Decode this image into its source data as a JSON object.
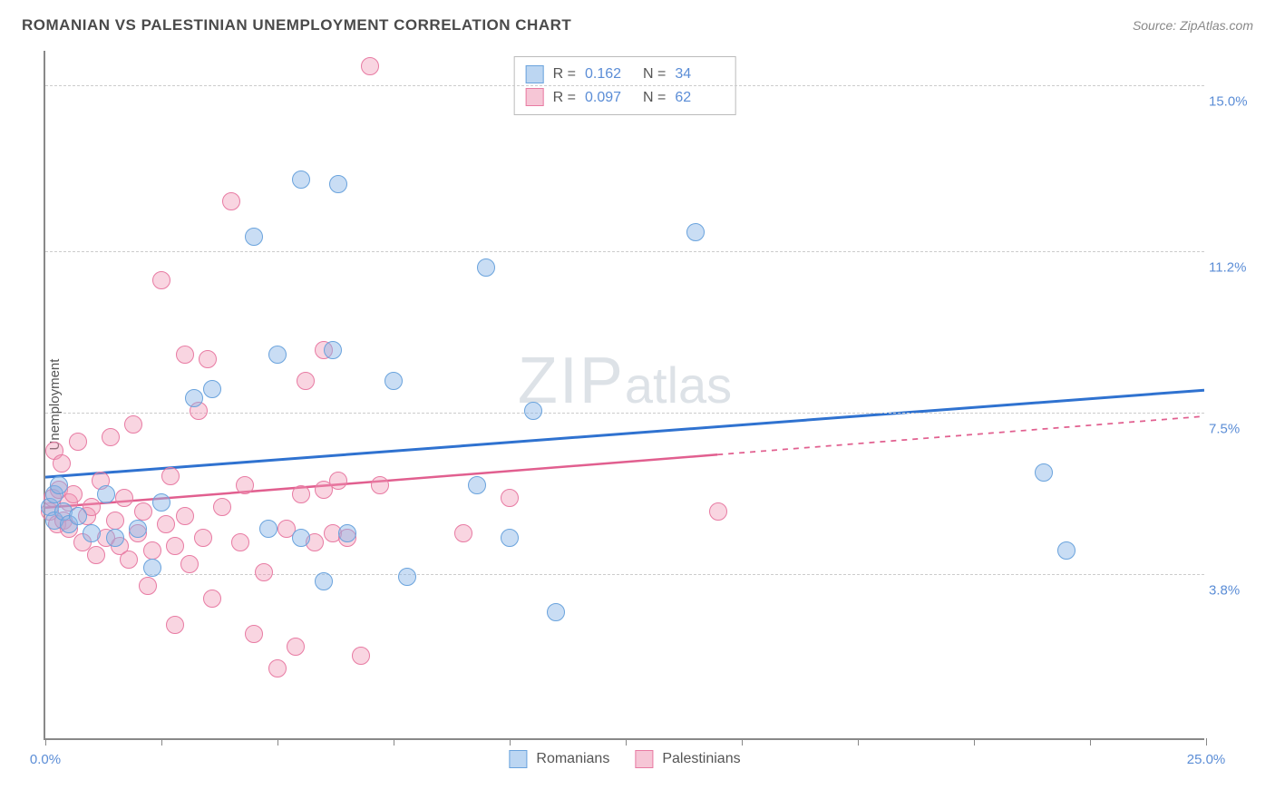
{
  "title": "ROMANIAN VS PALESTINIAN UNEMPLOYMENT CORRELATION CHART",
  "source": "Source: ZipAtlas.com",
  "ylabel": "Unemployment",
  "watermark_a": "ZIP",
  "watermark_b": "atlas",
  "chart": {
    "type": "scatter",
    "xlim": [
      0,
      25
    ],
    "ylim": [
      0,
      15.8
    ],
    "x_axis_labels": [
      {
        "x": 0,
        "label": "0.0%"
      },
      {
        "x": 25,
        "label": "25.0%"
      }
    ],
    "x_ticks": [
      0,
      2.5,
      5,
      7.5,
      10,
      12.5,
      15,
      17.5,
      20,
      22.5,
      25
    ],
    "y_gridlines": [
      {
        "y": 3.8,
        "label": "3.8%"
      },
      {
        "y": 7.5,
        "label": "7.5%"
      },
      {
        "y": 11.2,
        "label": "11.2%"
      },
      {
        "y": 15.0,
        "label": "15.0%"
      }
    ],
    "grid_color": "#cccccc",
    "background_color": "#ffffff",
    "marker_radius": 10,
    "marker_stroke_width": 1.5,
    "series": [
      {
        "name": "Romanians",
        "fill": "rgba(135,180,230,0.45)",
        "stroke": "#6aa3dd",
        "swatch_fill": "#bcd6f2",
        "swatch_stroke": "#6aa3dd",
        "r_value": "0.162",
        "n_value": "34",
        "trend": {
          "color": "#2f72d0",
          "width": 3,
          "y_at_x0": 6.0,
          "y_at_x25": 8.0,
          "solid_until_x": 25
        },
        "points": [
          {
            "x": 0.1,
            "y": 5.3
          },
          {
            "x": 0.2,
            "y": 5.6
          },
          {
            "x": 0.2,
            "y": 5.0
          },
          {
            "x": 0.3,
            "y": 5.8
          },
          {
            "x": 0.4,
            "y": 5.2
          },
          {
            "x": 0.5,
            "y": 4.9
          },
          {
            "x": 0.7,
            "y": 5.1
          },
          {
            "x": 1.0,
            "y": 4.7
          },
          {
            "x": 1.3,
            "y": 5.6
          },
          {
            "x": 1.5,
            "y": 4.6
          },
          {
            "x": 2.0,
            "y": 4.8
          },
          {
            "x": 2.3,
            "y": 3.9
          },
          {
            "x": 2.5,
            "y": 5.4
          },
          {
            "x": 3.2,
            "y": 7.8
          },
          {
            "x": 3.6,
            "y": 8.0
          },
          {
            "x": 4.5,
            "y": 11.5
          },
          {
            "x": 4.8,
            "y": 4.8
          },
          {
            "x": 5.0,
            "y": 8.8
          },
          {
            "x": 5.5,
            "y": 4.6
          },
          {
            "x": 5.5,
            "y": 12.8
          },
          {
            "x": 6.0,
            "y": 3.6
          },
          {
            "x": 6.2,
            "y": 8.9
          },
          {
            "x": 6.3,
            "y": 12.7
          },
          {
            "x": 6.5,
            "y": 4.7
          },
          {
            "x": 7.5,
            "y": 8.2
          },
          {
            "x": 7.8,
            "y": 3.7
          },
          {
            "x": 9.3,
            "y": 5.8
          },
          {
            "x": 9.5,
            "y": 10.8
          },
          {
            "x": 10.0,
            "y": 4.6
          },
          {
            "x": 10.5,
            "y": 7.5
          },
          {
            "x": 11.0,
            "y": 2.9
          },
          {
            "x": 14.0,
            "y": 11.6
          },
          {
            "x": 21.5,
            "y": 6.1
          },
          {
            "x": 22.0,
            "y": 4.3
          }
        ]
      },
      {
        "name": "Palestinians",
        "fill": "rgba(240,150,180,0.40)",
        "stroke": "#e87ba3",
        "swatch_fill": "#f6c6d6",
        "swatch_stroke": "#e87ba3",
        "r_value": "0.097",
        "n_value": "62",
        "trend": {
          "color": "#e15f8f",
          "width": 2.5,
          "y_at_x0": 5.3,
          "y_at_x25": 7.4,
          "solid_until_x": 14.5
        },
        "points": [
          {
            "x": 0.1,
            "y": 5.2
          },
          {
            "x": 0.15,
            "y": 5.5
          },
          {
            "x": 0.2,
            "y": 6.6
          },
          {
            "x": 0.25,
            "y": 4.9
          },
          {
            "x": 0.3,
            "y": 5.7
          },
          {
            "x": 0.35,
            "y": 6.3
          },
          {
            "x": 0.4,
            "y": 5.0
          },
          {
            "x": 0.5,
            "y": 4.8
          },
          {
            "x": 0.5,
            "y": 5.4
          },
          {
            "x": 0.6,
            "y": 5.6
          },
          {
            "x": 0.7,
            "y": 6.8
          },
          {
            "x": 0.8,
            "y": 4.5
          },
          {
            "x": 0.9,
            "y": 5.1
          },
          {
            "x": 1.0,
            "y": 5.3
          },
          {
            "x": 1.1,
            "y": 4.2
          },
          {
            "x": 1.2,
            "y": 5.9
          },
          {
            "x": 1.3,
            "y": 4.6
          },
          {
            "x": 1.4,
            "y": 6.9
          },
          {
            "x": 1.5,
            "y": 5.0
          },
          {
            "x": 1.6,
            "y": 4.4
          },
          {
            "x": 1.7,
            "y": 5.5
          },
          {
            "x": 1.8,
            "y": 4.1
          },
          {
            "x": 1.9,
            "y": 7.2
          },
          {
            "x": 2.0,
            "y": 4.7
          },
          {
            "x": 2.1,
            "y": 5.2
          },
          {
            "x": 2.2,
            "y": 3.5
          },
          {
            "x": 2.3,
            "y": 4.3
          },
          {
            "x": 2.5,
            "y": 10.5
          },
          {
            "x": 2.6,
            "y": 4.9
          },
          {
            "x": 2.7,
            "y": 6.0
          },
          {
            "x": 2.8,
            "y": 4.4
          },
          {
            "x": 2.8,
            "y": 2.6
          },
          {
            "x": 3.0,
            "y": 8.8
          },
          {
            "x": 3.0,
            "y": 5.1
          },
          {
            "x": 3.1,
            "y": 4.0
          },
          {
            "x": 3.3,
            "y": 7.5
          },
          {
            "x": 3.4,
            "y": 4.6
          },
          {
            "x": 3.5,
            "y": 8.7
          },
          {
            "x": 3.6,
            "y": 3.2
          },
          {
            "x": 3.8,
            "y": 5.3
          },
          {
            "x": 4.0,
            "y": 12.3
          },
          {
            "x": 4.2,
            "y": 4.5
          },
          {
            "x": 4.3,
            "y": 5.8
          },
          {
            "x": 4.5,
            "y": 2.4
          },
          {
            "x": 4.7,
            "y": 3.8
          },
          {
            "x": 5.0,
            "y": 1.6
          },
          {
            "x": 5.2,
            "y": 4.8
          },
          {
            "x": 5.4,
            "y": 2.1
          },
          {
            "x": 5.5,
            "y": 5.6
          },
          {
            "x": 5.6,
            "y": 8.2
          },
          {
            "x": 5.8,
            "y": 4.5
          },
          {
            "x": 6.0,
            "y": 8.9
          },
          {
            "x": 6.0,
            "y": 5.7
          },
          {
            "x": 6.2,
            "y": 4.7
          },
          {
            "x": 6.3,
            "y": 5.9
          },
          {
            "x": 6.5,
            "y": 4.6
          },
          {
            "x": 6.8,
            "y": 1.9
          },
          {
            "x": 7.0,
            "y": 15.4
          },
          {
            "x": 7.2,
            "y": 5.8
          },
          {
            "x": 9.0,
            "y": 4.7
          },
          {
            "x": 10.0,
            "y": 5.5
          },
          {
            "x": 14.5,
            "y": 5.2
          }
        ]
      }
    ]
  },
  "legend_bottom": {
    "series1_label": "Romanians",
    "series2_label": "Palestinians"
  }
}
